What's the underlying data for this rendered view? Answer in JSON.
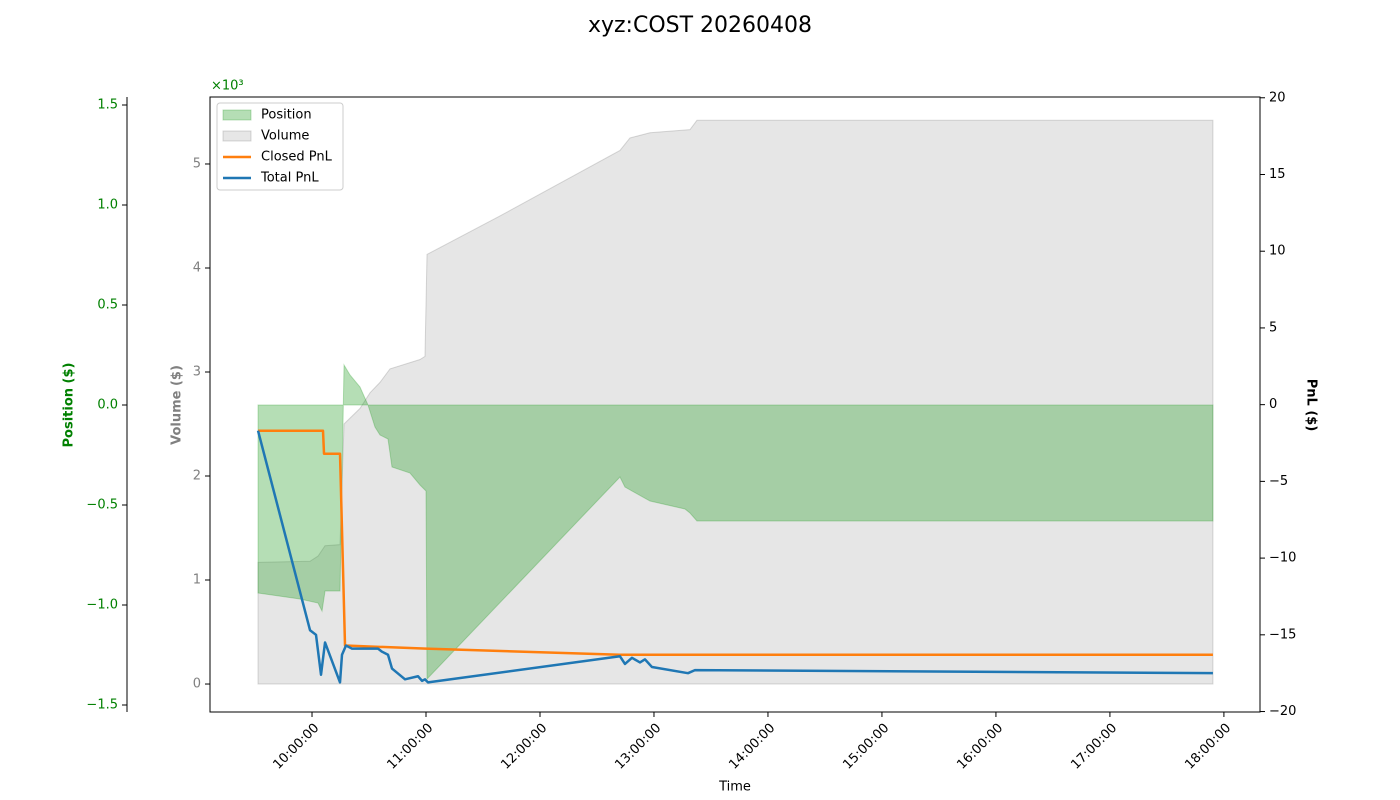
{
  "chart_data": {
    "type": "combo",
    "title": "xyz:COST 20260408",
    "xlabel": "Time",
    "ylabel": "Position ($)",
    "y2label": "Volume ($)",
    "y3label": "PnL ($)",
    "y2_offset_label": "×10³",
    "xlim": [
      "09:06:18",
      "18:19:00"
    ],
    "xticks": [
      "10:00:00",
      "11:00:00",
      "12:00:00",
      "13:00:00",
      "14:00:00",
      "15:00:00",
      "16:00:00",
      "17:00:00",
      "18:00:00"
    ],
    "ylim": [
      -1.535,
      1.54
    ],
    "y_color": "green",
    "yticks": [
      {
        "value": -1.5,
        "label": "−1.5"
      },
      {
        "value": -1.0,
        "label": "−1.0"
      },
      {
        "value": -0.5,
        "label": "−0.5"
      },
      {
        "value": 0,
        "label": "0.0"
      },
      0.5,
      {
        "value": 1.0,
        "label": "1.0"
      },
      1.5
    ],
    "y2lim": [
      -269,
      5644
    ],
    "y2_color": "gray",
    "y2ticks": [
      0,
      {
        "value": 1000,
        "label": "1"
      },
      {
        "value": 2000,
        "label": "2"
      },
      {
        "value": 3000,
        "label": "3"
      },
      {
        "value": 4000,
        "label": "4"
      },
      {
        "value": 5000,
        "label": "5"
      }
    ],
    "y3lim": [
      -20.03,
      20.05
    ],
    "y3_color": "black",
    "y3ticks": [
      {
        "value": -20,
        "label": "−20"
      },
      {
        "value": -15,
        "label": "−15"
      },
      {
        "value": -10,
        "label": "−10"
      },
      {
        "value": -5,
        "label": "−5"
      },
      0,
      5,
      10,
      15,
      20
    ],
    "legend": "upper left",
    "series": [
      {
        "name": "Position",
        "kind": "area",
        "axis": "y",
        "color": "#2ca02c",
        "x": [
          "09:31:35",
          "09:53:41",
          "10:03:10",
          "10:05:16",
          "10:06:51",
          "10:14:44",
          "10:16:51",
          "10:20:00",
          "10:25:16",
          "10:29:28",
          "10:33:09",
          "10:35:47",
          "10:40:00",
          "10:42:06",
          "10:51:35",
          "10:56:51",
          "11:00:00",
          "11:00:32",
          "12:42:06",
          "12:44:44",
          "12:48:25",
          "12:57:54",
          "13:16:18",
          "13:18:57",
          "13:22:38",
          "17:54:13"
        ],
        "values": [
          -0.94,
          -0.97,
          -0.99,
          -1.03,
          -0.93,
          -0.93,
          0.2,
          0.15,
          0.09,
          0,
          -0.11,
          -0.15,
          -0.17,
          -0.31,
          -0.34,
          -0.4,
          -0.43,
          -1.37,
          -0.36,
          -0.41,
          -0.43,
          -0.48,
          -0.52,
          -0.54,
          -0.58,
          -0.58
        ]
      },
      {
        "name": "Volume",
        "kind": "area",
        "axis": "y2",
        "color": "#808080",
        "x": [
          "09:31:35",
          "09:58:57",
          "10:03:10",
          "10:06:51",
          "10:14:44",
          "10:16:51",
          "10:25:16",
          "10:30:32",
          "10:35:47",
          "10:41:03",
          "10:56:51",
          "10:59:28",
          "11:00:32",
          "11:38:57",
          "12:42:06",
          "12:47:22",
          "12:57:54",
          "13:18:57",
          "13:22:38",
          "17:54:13"
        ],
        "values": [
          1170,
          1180,
          1230,
          1330,
          1340,
          2500,
          2650,
          2800,
          2900,
          3030,
          3120,
          3150,
          4130,
          4500,
          5130,
          5250,
          5300,
          5330,
          5420,
          5420
        ]
      },
      {
        "name": "Closed PnL",
        "kind": "line",
        "axis": "y3",
        "color": "#ff7f0e",
        "x": [
          "09:31:35",
          "10:05:47",
          "10:06:19",
          "10:14:44",
          "10:17:22",
          "11:00:00",
          "12:42:06",
          "17:54:13"
        ],
        "values": [
          -1.7,
          -1.7,
          -3.2,
          -3.2,
          -15.7,
          -15.9,
          -16.3,
          -16.3
        ]
      },
      {
        "name": "Total PnL",
        "kind": "line",
        "axis": "y3",
        "color": "#1f77b4",
        "x": [
          "09:31:35",
          "09:58:57",
          "10:02:06",
          "10:04:44",
          "10:06:51",
          "10:14:44",
          "10:15:47",
          "10:17:54",
          "10:21:03",
          "10:25:16",
          "10:34:44",
          "10:36:51",
          "10:40:00",
          "10:42:06",
          "10:48:57",
          "10:55:47",
          "10:57:54",
          "10:59:28",
          "11:01:03",
          "12:42:06",
          "12:44:44",
          "12:48:25",
          "12:52:38",
          "12:55:16",
          "12:58:57",
          "13:17:54",
          "13:21:35",
          "17:54:13"
        ],
        "values": [
          -1.7,
          -14.7,
          -15.0,
          -17.6,
          -15.5,
          -18.1,
          -16.3,
          -15.7,
          -15.9,
          -15.9,
          -15.9,
          -16.1,
          -16.3,
          -17.2,
          -17.9,
          -17.7,
          -18.0,
          -17.9,
          -18.1,
          -16.4,
          -16.9,
          -16.5,
          -16.8,
          -16.6,
          -17.1,
          -17.5,
          -17.3,
          -17.5
        ]
      }
    ]
  }
}
